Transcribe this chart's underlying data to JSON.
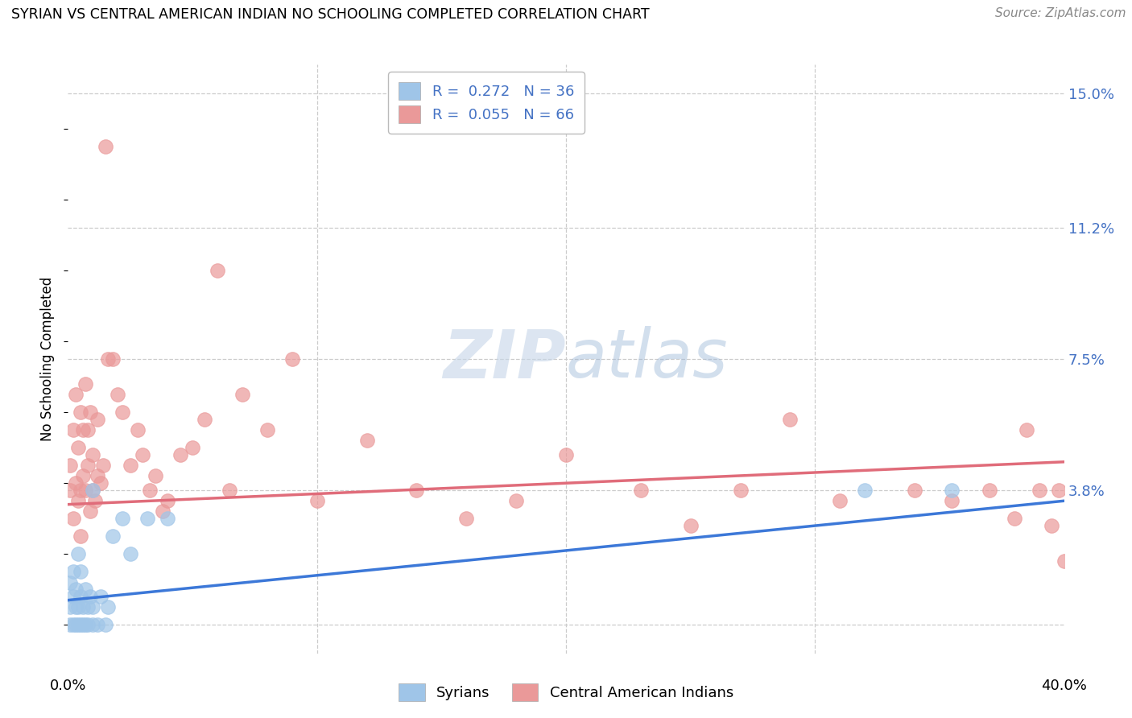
{
  "title": "SYRIAN VS CENTRAL AMERICAN INDIAN NO SCHOOLING COMPLETED CORRELATION CHART",
  "source": "Source: ZipAtlas.com",
  "ylabel": "No Schooling Completed",
  "legend_label1": "Syrians",
  "legend_label2": "Central American Indians",
  "blue_color": "#9fc5e8",
  "pink_color": "#ea9999",
  "blue_line_color": "#3c78d8",
  "pink_line_color": "#e06c7a",
  "label_color": "#4472c4",
  "watermark_color": "#c9d9f0",
  "xlim": [
    0.0,
    0.4
  ],
  "ylim": [
    -0.008,
    0.158
  ],
  "ytick_vals": [
    0.0,
    0.038,
    0.075,
    0.112,
    0.15
  ],
  "ytick_labels": [
    "0%",
    "3.8%",
    "7.5%",
    "11.2%",
    "15.0%"
  ],
  "blue_line_x": [
    0.0,
    0.4
  ],
  "blue_line_y": [
    0.007,
    0.035
  ],
  "pink_line_x": [
    0.0,
    0.4
  ],
  "pink_line_y": [
    0.034,
    0.046
  ],
  "syrians_x": [
    0.001,
    0.001,
    0.001,
    0.002,
    0.002,
    0.002,
    0.003,
    0.003,
    0.003,
    0.004,
    0.004,
    0.004,
    0.005,
    0.005,
    0.005,
    0.006,
    0.006,
    0.007,
    0.007,
    0.008,
    0.008,
    0.009,
    0.01,
    0.01,
    0.01,
    0.012,
    0.013,
    0.015,
    0.016,
    0.018,
    0.022,
    0.025,
    0.032,
    0.04,
    0.32,
    0.355
  ],
  "syrians_y": [
    0.0,
    0.005,
    0.012,
    0.0,
    0.008,
    0.015,
    0.0,
    0.005,
    0.01,
    0.0,
    0.005,
    0.02,
    0.0,
    0.008,
    0.015,
    0.0,
    0.005,
    0.0,
    0.01,
    0.0,
    0.005,
    0.008,
    0.0,
    0.005,
    0.038,
    0.0,
    0.008,
    0.0,
    0.005,
    0.025,
    0.03,
    0.02,
    0.03,
    0.03,
    0.038,
    0.038
  ],
  "central_x": [
    0.001,
    0.001,
    0.002,
    0.002,
    0.003,
    0.003,
    0.004,
    0.004,
    0.005,
    0.005,
    0.005,
    0.006,
    0.006,
    0.007,
    0.007,
    0.008,
    0.008,
    0.009,
    0.009,
    0.01,
    0.01,
    0.011,
    0.012,
    0.012,
    0.013,
    0.014,
    0.015,
    0.016,
    0.018,
    0.02,
    0.022,
    0.025,
    0.028,
    0.03,
    0.033,
    0.035,
    0.038,
    0.04,
    0.045,
    0.05,
    0.055,
    0.06,
    0.065,
    0.07,
    0.08,
    0.09,
    0.1,
    0.12,
    0.14,
    0.16,
    0.18,
    0.2,
    0.23,
    0.25,
    0.27,
    0.29,
    0.31,
    0.34,
    0.355,
    0.37,
    0.38,
    0.385,
    0.39,
    0.395,
    0.398,
    0.4
  ],
  "central_y": [
    0.038,
    0.045,
    0.03,
    0.055,
    0.04,
    0.065,
    0.035,
    0.05,
    0.025,
    0.038,
    0.06,
    0.042,
    0.055,
    0.038,
    0.068,
    0.045,
    0.055,
    0.032,
    0.06,
    0.038,
    0.048,
    0.035,
    0.042,
    0.058,
    0.04,
    0.045,
    0.135,
    0.075,
    0.075,
    0.065,
    0.06,
    0.045,
    0.055,
    0.048,
    0.038,
    0.042,
    0.032,
    0.035,
    0.048,
    0.05,
    0.058,
    0.1,
    0.038,
    0.065,
    0.055,
    0.075,
    0.035,
    0.052,
    0.038,
    0.03,
    0.035,
    0.048,
    0.038,
    0.028,
    0.038,
    0.058,
    0.035,
    0.038,
    0.035,
    0.038,
    0.03,
    0.055,
    0.038,
    0.028,
    0.038,
    0.018
  ]
}
